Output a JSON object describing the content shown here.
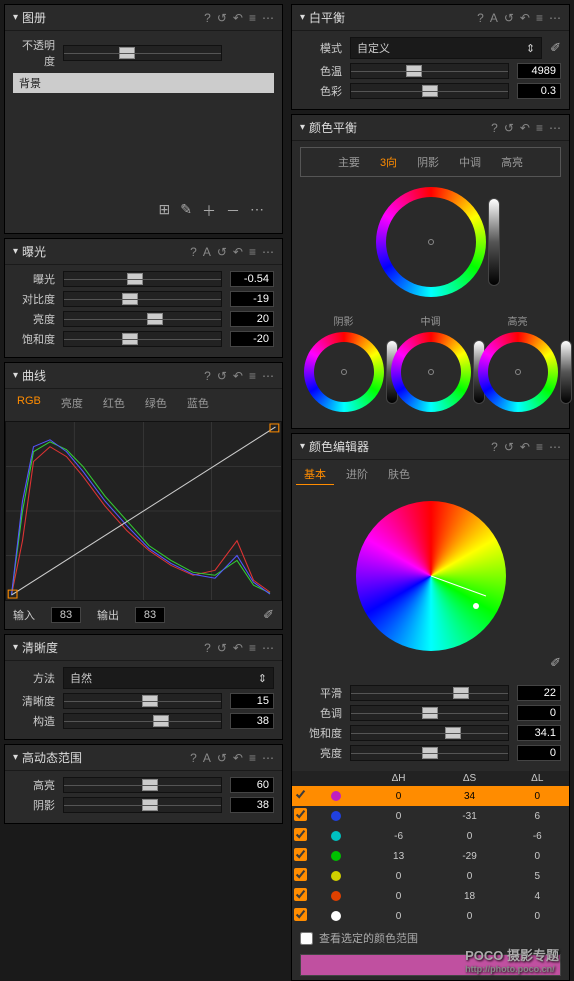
{
  "left": {
    "layers": {
      "title": "图册",
      "opacity_label": "不透明度",
      "bg_layer": "背景"
    },
    "exposure": {
      "title": "曝光",
      "rows": [
        {
          "label": "曝光",
          "value": "-0.54",
          "pos": 45
        },
        {
          "label": "对比度",
          "value": "-19",
          "pos": 42
        },
        {
          "label": "亮度",
          "value": "20",
          "pos": 58
        },
        {
          "label": "饱和度",
          "value": "-20",
          "pos": 42
        }
      ]
    },
    "curves": {
      "title": "曲线",
      "tabs": [
        "RGB",
        "亮度",
        "红色",
        "绿色",
        "蓝色"
      ],
      "input_label": "输入",
      "input_val": "83",
      "output_label": "输出",
      "output_val": "83"
    },
    "clarity": {
      "title": "清晰度",
      "method_label": "方法",
      "method_value": "自然",
      "rows": [
        {
          "label": "清晰度",
          "value": "15",
          "pos": 55
        },
        {
          "label": "构造",
          "value": "38",
          "pos": 62
        }
      ]
    },
    "hdr": {
      "title": "高动态范围",
      "rows": [
        {
          "label": "高亮",
          "value": "60",
          "pos": 55
        },
        {
          "label": "阴影",
          "value": "38",
          "pos": 55
        }
      ]
    }
  },
  "right": {
    "wb": {
      "title": "白平衡",
      "mode_label": "模式",
      "mode_value": "自定义",
      "rows": [
        {
          "label": "色温",
          "value": "4989",
          "pos": 40
        },
        {
          "label": "色彩",
          "value": "0.3",
          "pos": 50
        }
      ]
    },
    "colorbal": {
      "title": "颜色平衡",
      "tabs": [
        "主要",
        "3向",
        "阴影",
        "中调",
        "高亮"
      ],
      "wheel_labels": [
        "阴影",
        "中调",
        "高亮"
      ]
    },
    "coloredit": {
      "title": "颜色编辑器",
      "tabs": [
        "基本",
        "进阶",
        "肤色"
      ],
      "rows": [
        {
          "label": "平滑",
          "value": "22",
          "pos": 70
        },
        {
          "label": "色调",
          "value": "0",
          "pos": 50
        },
        {
          "label": "饱和度",
          "value": "34.1",
          "pos": 65
        },
        {
          "label": "亮度",
          "value": "0",
          "pos": 50
        }
      ],
      "table": {
        "headers": [
          "",
          "",
          "ΔH",
          "ΔS",
          "ΔL"
        ],
        "rows": [
          {
            "chk": true,
            "color": "#c020c0",
            "dh": "0",
            "ds": "34",
            "dl": "0",
            "sel": true
          },
          {
            "chk": true,
            "color": "#2040e0",
            "dh": "0",
            "ds": "-31",
            "dl": "6",
            "sel": false
          },
          {
            "chk": true,
            "color": "#00c0c0",
            "dh": "-6",
            "ds": "0",
            "dl": "-6",
            "sel": false
          },
          {
            "chk": true,
            "color": "#00c000",
            "dh": "13",
            "ds": "-29",
            "dl": "0",
            "sel": false
          },
          {
            "chk": true,
            "color": "#d0d000",
            "dh": "0",
            "ds": "0",
            "dl": "5",
            "sel": false
          },
          {
            "chk": true,
            "color": "#e04000",
            "dh": "0",
            "ds": "18",
            "dl": "4",
            "sel": false
          },
          {
            "chk": true,
            "color": "#ffffff",
            "dh": "0",
            "ds": "0",
            "dl": "0",
            "sel": false
          }
        ]
      },
      "view_range": "查看选定的颜色范围"
    }
  },
  "watermark": {
    "brand": "POCO 摄影专题",
    "url": "http://photo.poco.cn/"
  }
}
